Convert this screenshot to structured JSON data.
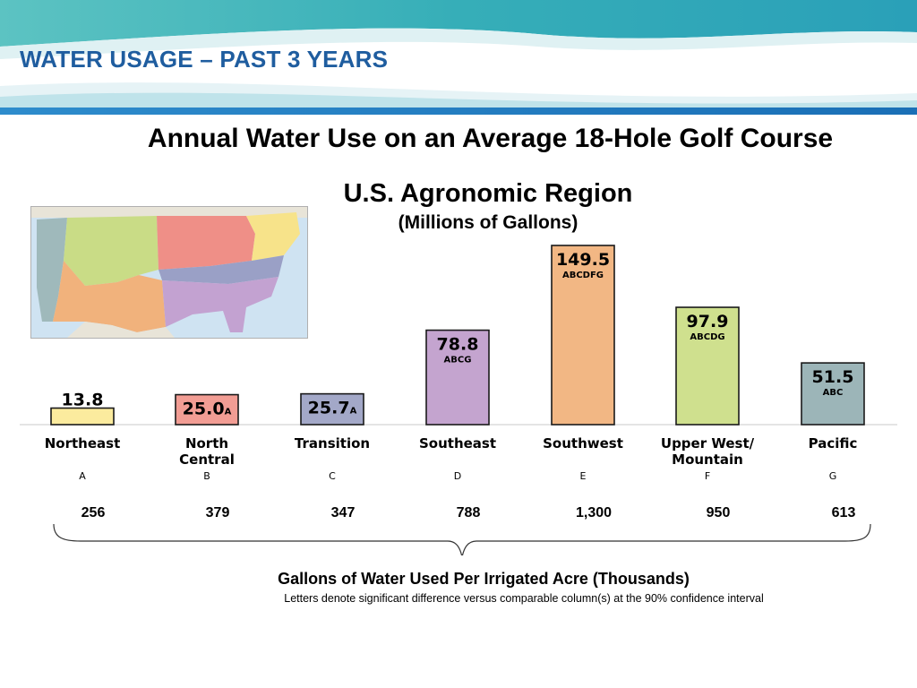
{
  "slide": {
    "title": "WATER USAGE – PAST 3 YEARS"
  },
  "colors": {
    "banner_teal": "#3cb3b8",
    "banner_blue": "#1f7fc0",
    "title_blue": "#1f5d9f"
  },
  "map": {
    "region_colors": {
      "upper_west": "#c9dc86",
      "north_central": "#ef8f87",
      "northeast": "#f7e38a",
      "transition": "#9aa0c6",
      "southeast": "#c3a2d1",
      "southwest": "#f1b27c",
      "pacific": "#9fb9bb",
      "ocean": "#cfe3f2"
    }
  },
  "chart_data": {
    "type": "bar",
    "title": "Annual Water Use on an Average 18-Hole Golf Course",
    "subtitle": "U.S. Agronomic Region",
    "units": "(Millions of Gallons)",
    "ylim": [
      0,
      149.5
    ],
    "grid": false,
    "categories": [
      "Northeast",
      "North Central",
      "Transition",
      "Southeast",
      "Southwest",
      "Upper West/ Mountain",
      "Pacific"
    ],
    "category_lines": [
      [
        "Northeast"
      ],
      [
        "North",
        "Central"
      ],
      [
        "Transition"
      ],
      [
        "Southeast"
      ],
      [
        "Southwest"
      ],
      [
        "Upper West/",
        "Mountain"
      ],
      [
        "Pacific"
      ]
    ],
    "category_letters": [
      "A",
      "B",
      "C",
      "D",
      "E",
      "F",
      "G"
    ],
    "values": [
      13.8,
      25.0,
      25.7,
      78.8,
      149.5,
      97.9,
      51.5
    ],
    "value_labels": [
      "13.8",
      "25.0",
      "25.7",
      "78.8",
      "149.5",
      "97.9",
      "51.5"
    ],
    "significance_letters": [
      "",
      "A",
      "A",
      "ABCG",
      "ABCDFG",
      "ABCDG",
      "ABC"
    ],
    "bar_colors": [
      "#fbeb9e",
      "#f29d94",
      "#a3a8c8",
      "#c4a4cf",
      "#f2b784",
      "#cfe08e",
      "#9cb5b8"
    ],
    "gallons_per_acre_thousands": [
      "256",
      "379",
      "347",
      "788",
      "1,300",
      "950",
      "613"
    ]
  },
  "footnote": {
    "title": "Gallons of Water Used Per Irrigated Acre (Thousands)",
    "text": "Letters denote significant difference versus comparable column(s) at the 90% confidence interval"
  }
}
